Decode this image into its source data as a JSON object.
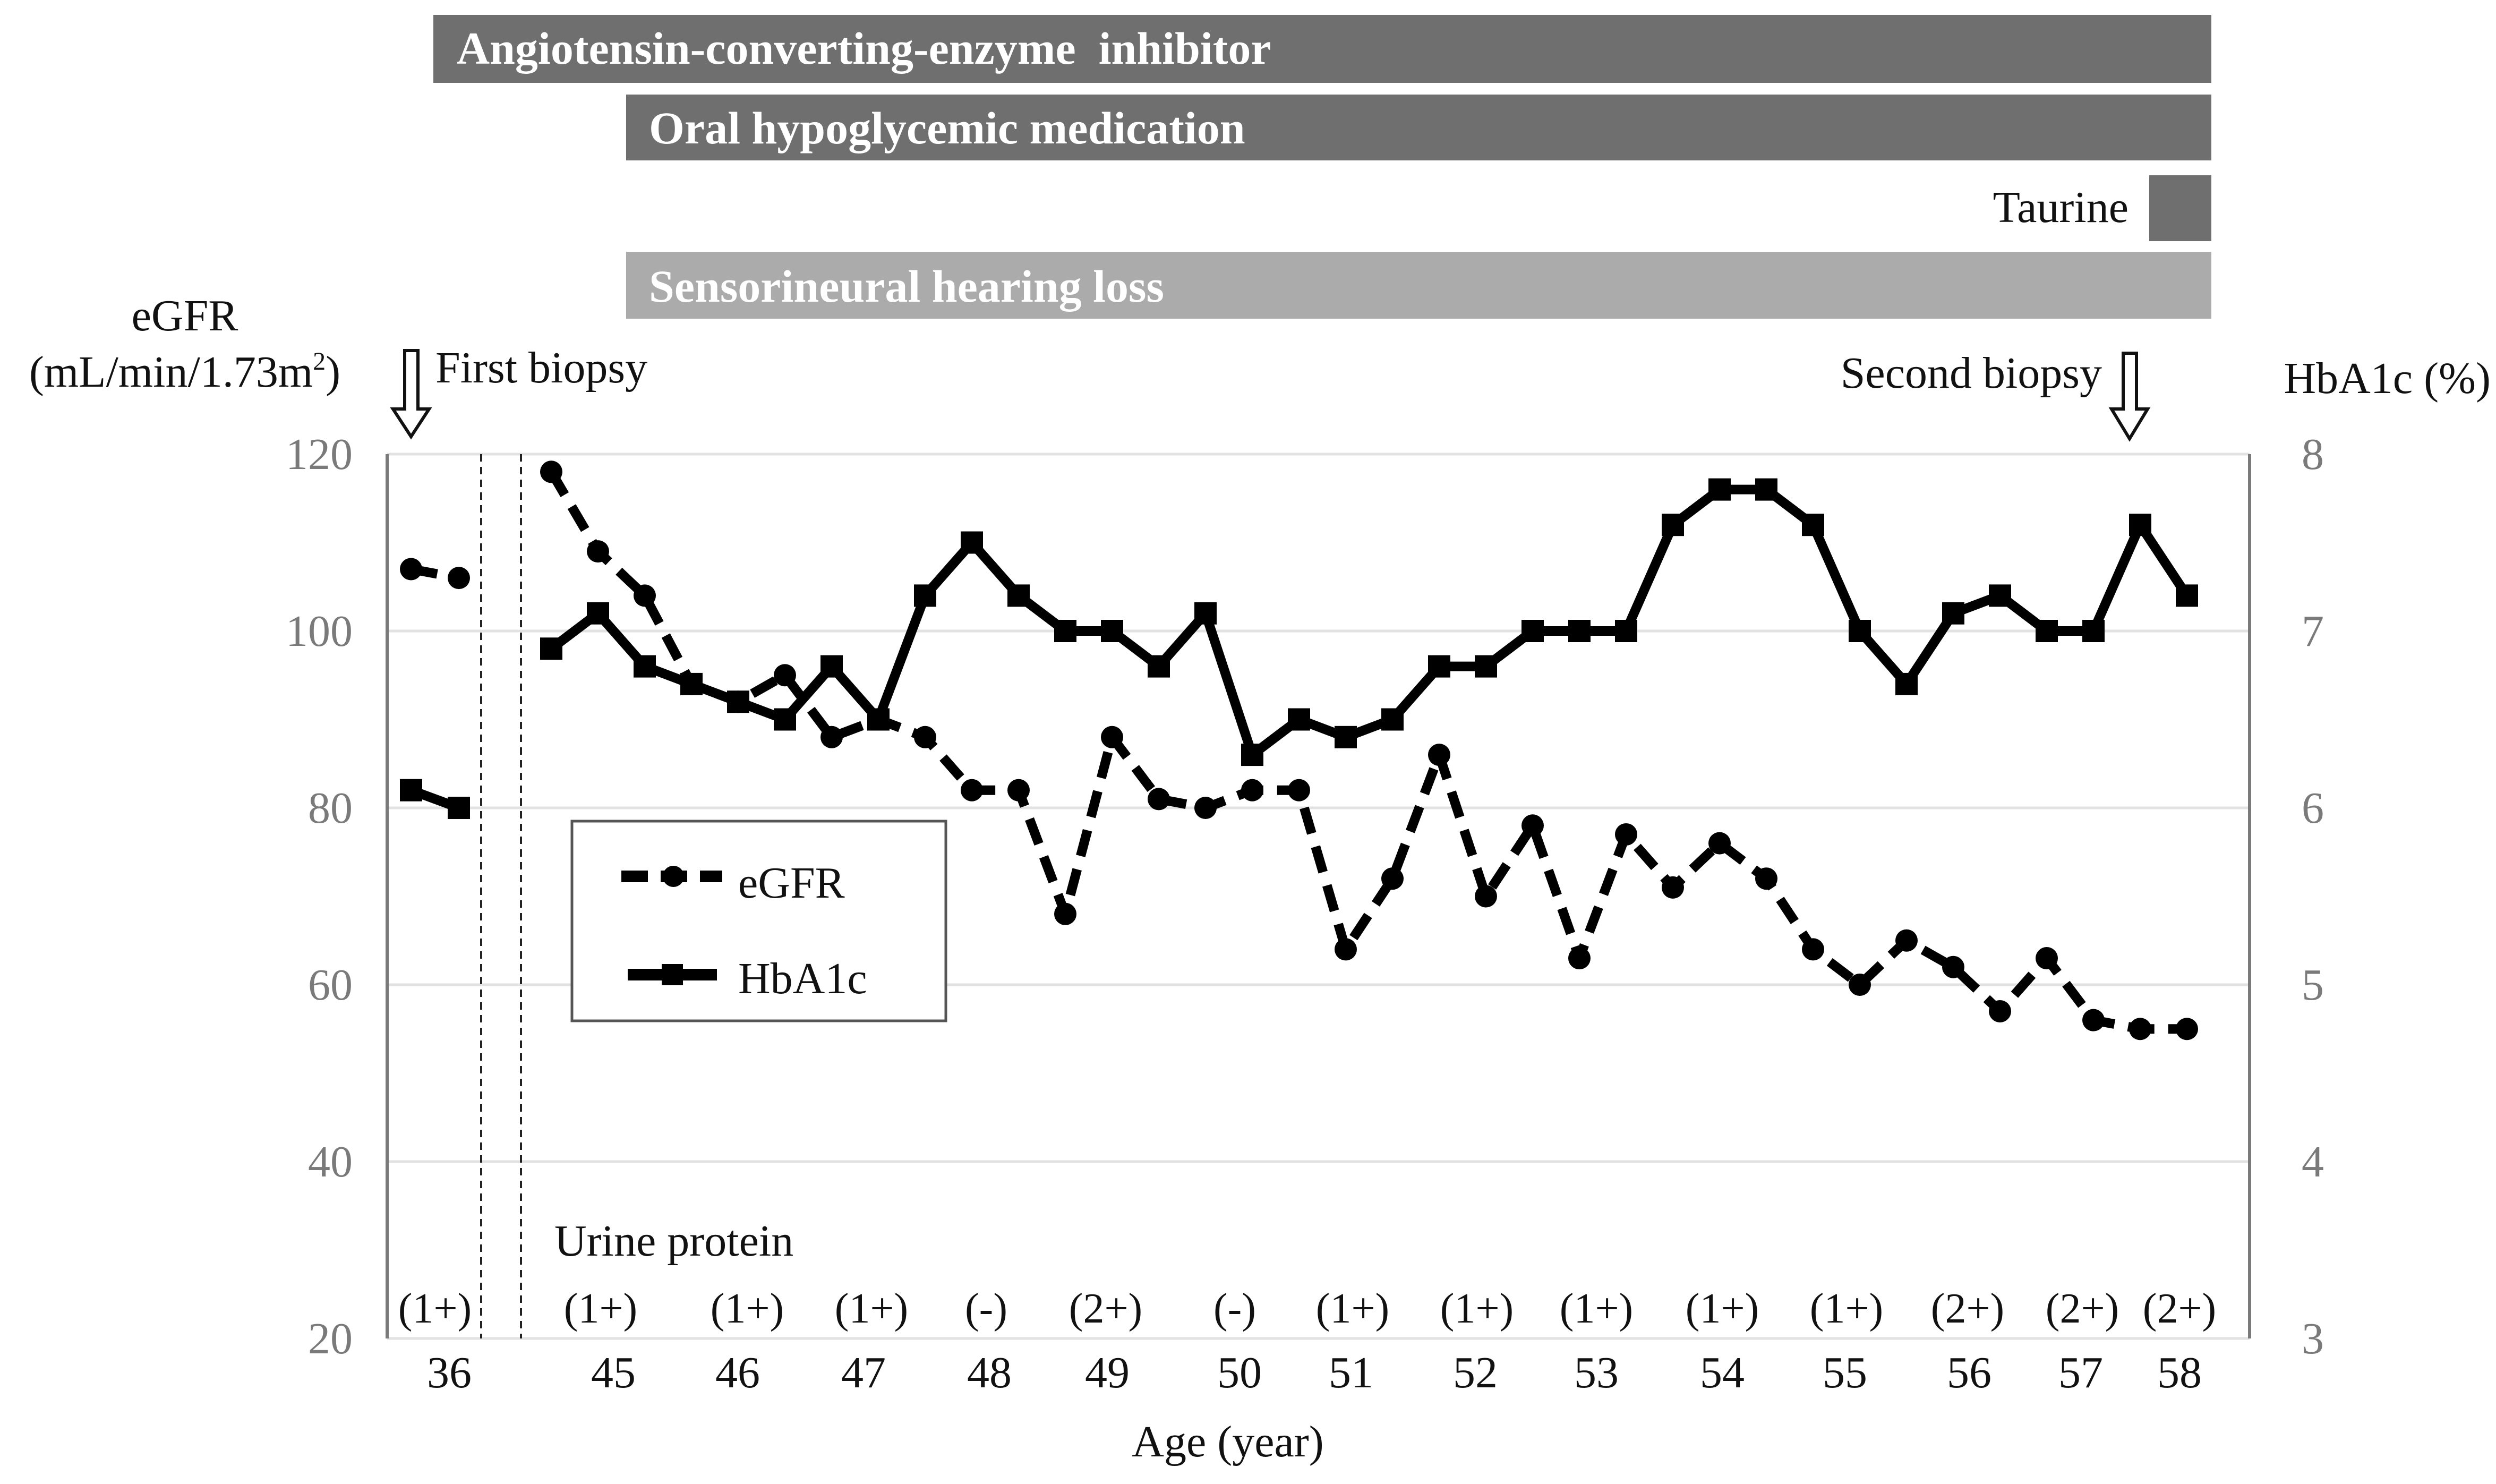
{
  "chart_data": {
    "type": "line",
    "title": "",
    "xlabel": "Age (year)",
    "ylabel_left": "eGFR",
    "ylabel_left_unit_prefix": "(mL/min/1.73m",
    "ylabel_left_unit_sup": "2",
    "ylabel_left_unit_suffix": ")",
    "ylabel_right": "HbA1c (%)",
    "ylim_left": [
      20,
      120
    ],
    "ylim_right": [
      3,
      8
    ],
    "yticks_left": [
      "20",
      "40",
      "60",
      "80",
      "100",
      "120"
    ],
    "yticks_right": [
      "3",
      "4",
      "5",
      "6",
      "7",
      "8"
    ],
    "grid": true,
    "x_tick_labels": [
      "36",
      "45",
      "46",
      "47",
      "48",
      "49",
      "50",
      "51",
      "52",
      "53",
      "54",
      "55",
      "56",
      "57",
      "58"
    ],
    "legend": {
      "position": "center-left",
      "entries": [
        "eGFR",
        "HbA1c"
      ]
    },
    "annotations": {
      "first_biopsy": "First biopsy",
      "second_biopsy": "Second biopsy",
      "urine_protein_title": "Urine protein",
      "urine_protein": [
        "(1+)",
        "(1+)",
        "(1+)",
        "(1+)",
        "(-)",
        "(2+)",
        "(-)",
        "(1+)",
        "(1+)",
        "(1+)",
        "(1+)",
        "(1+)",
        "(2+)",
        "(2+)",
        "(2+)"
      ]
    },
    "treatment_bars": [
      {
        "label": "Angiotensin-converting-enzyme  inhibitor",
        "start_age": 36,
        "end_age": 58,
        "color": "#6f6f70"
      },
      {
        "label": "Oral hypoglycemic medication",
        "start_age": 45,
        "end_age": 58,
        "color": "#6f6f70"
      },
      {
        "label": "Taurine",
        "start_age": 57.9,
        "end_age": 58,
        "color": "#6f6f70"
      },
      {
        "label": "Sensorineural hearing loss",
        "start_age": 45,
        "end_age": 58,
        "color": "#ababab"
      }
    ],
    "segments": [
      {
        "name": "age-36",
        "x": [
          36.0,
          36.5
        ],
        "series": [
          {
            "name": "eGFR",
            "axis": "left",
            "style": "dashed-circle",
            "values": [
              107,
              106
            ]
          },
          {
            "name": "HbA1c",
            "axis": "right",
            "style": "solid-square",
            "values": [
              6.1,
              6.0
            ]
          }
        ]
      },
      {
        "name": "age-45-58",
        "x": [
          44.7,
          45.05,
          45.4,
          45.75,
          46.1,
          46.45,
          46.8,
          47.15,
          47.5,
          47.85,
          48.2,
          48.55,
          48.9,
          49.25,
          49.6,
          49.95,
          50.3,
          50.65,
          51.0,
          51.35,
          51.7,
          52.05,
          52.4,
          52.75,
          53.1,
          53.45,
          53.8,
          54.15,
          54.5,
          54.85,
          55.2,
          55.55,
          55.9,
          56.25,
          56.6,
          56.95
        ],
        "series": [
          {
            "name": "eGFR",
            "axis": "left",
            "style": "dashed-circle",
            "values": [
              118,
              109,
              104,
              94,
              92,
              95,
              88,
              90,
              88,
              82,
              82,
              68,
              88,
              81,
              80,
              82,
              82,
              64,
              72,
              86,
              70,
              78,
              63,
              77,
              71,
              76,
              72,
              64,
              60,
              65,
              62,
              57,
              63,
              56,
              55,
              55
            ]
          },
          {
            "name": "HbA1c",
            "axis": "right",
            "style": "solid-square",
            "values": [
              6.9,
              7.1,
              6.8,
              6.7,
              6.6,
              6.5,
              6.8,
              6.5,
              7.2,
              7.5,
              7.2,
              7.0,
              7.0,
              6.8,
              7.1,
              6.3,
              6.5,
              6.4,
              6.5,
              6.8,
              6.8,
              7.0,
              7.0,
              7.0,
              7.6,
              7.8,
              7.8,
              7.6,
              7.0,
              6.7,
              7.1,
              7.2,
              7.0,
              7.0,
              7.6,
              7.2
            ]
          }
        ]
      }
    ]
  }
}
